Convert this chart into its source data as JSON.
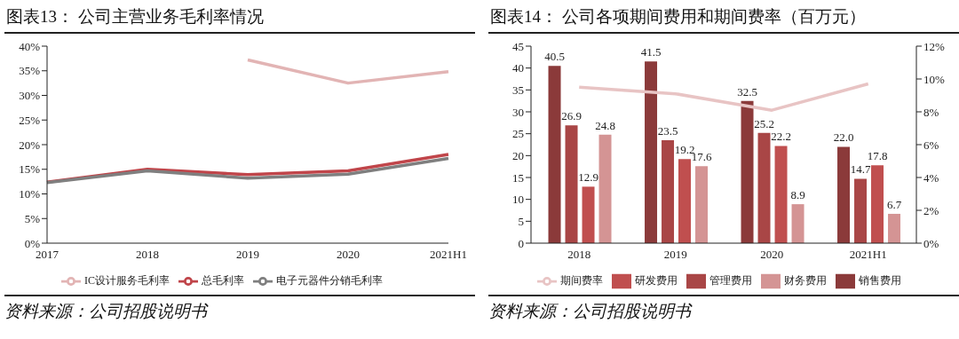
{
  "chart_data": [
    {
      "type": "line",
      "title": "图表13：  公司主营业务毛利率情况",
      "categories": [
        "2017",
        "2018",
        "2019",
        "2020",
        "2021H1"
      ],
      "series": [
        {
          "name": "总毛利率",
          "color": "#c0454a",
          "values": [
            12.4,
            15.0,
            13.9,
            14.7,
            18.0
          ]
        },
        {
          "name": "电子元器件分销毛利率",
          "color": "#7f7f7f",
          "values": [
            12.3,
            14.7,
            13.2,
            14.0,
            17.2
          ]
        },
        {
          "name": "IC设计服务毛利率",
          "color": "#e2b4b4",
          "values": [
            null,
            null,
            37.2,
            32.5,
            34.8
          ]
        }
      ],
      "ylim": [
        0,
        40
      ],
      "yticks": [
        {
          "value": 0,
          "label": "0%"
        },
        {
          "value": 5,
          "label": "5%"
        },
        {
          "value": 10,
          "label": "10%"
        },
        {
          "value": 15,
          "label": "15%"
        },
        {
          "value": 20,
          "label": "20%"
        },
        {
          "value": 25,
          "label": "25%"
        },
        {
          "value": 30,
          "label": "30%"
        },
        {
          "value": 35,
          "label": "35%"
        },
        {
          "value": 40,
          "label": "40%"
        }
      ],
      "grid": false,
      "legend": "bottom",
      "marker": "none",
      "line_style": "solid",
      "annotations": [
        "资料来源：公司招股说明书"
      ]
    },
    {
      "type": "bar",
      "title": "图表14：  公司各项期间费用和期间费率（百万元）",
      "categories": [
        "2018",
        "2019",
        "2020",
        "2021H1"
      ],
      "series": [
        {
          "name": "销售费用",
          "color": "#8b3a3a",
          "values": [
            40.5,
            41.5,
            32.5,
            22.0
          ],
          "value_labels": [
            "40.5",
            "41.5",
            "32.5",
            "22.0"
          ]
        },
        {
          "name": "管理费用",
          "color": "#a94646",
          "values": [
            26.9,
            23.5,
            25.2,
            14.7
          ],
          "value_labels": [
            "26.9",
            "23.5",
            "25.2",
            "14.7"
          ]
        },
        {
          "name": "研发费用",
          "color": "#c04f4f",
          "values": [
            12.9,
            19.2,
            22.2,
            17.8
          ],
          "value_labels": [
            "12.9",
            "19.2",
            "22.2",
            "17.8"
          ]
        },
        {
          "name": "财务费用",
          "color": "#d49494",
          "values": [
            24.8,
            17.6,
            8.9,
            6.7
          ],
          "value_labels": [
            "24.8",
            "17.6",
            "8.9",
            "6.7"
          ]
        },
        {
          "name": "期间费率",
          "type": "line",
          "axis": "y2",
          "color": "#e8c4c4",
          "values": [
            9.5,
            9.1,
            8.1,
            9.7
          ]
        }
      ],
      "ylim": [
        0,
        45
      ],
      "yticks": [
        0,
        5,
        10,
        15,
        20,
        25,
        30,
        35,
        40,
        45
      ],
      "y2lim": [
        0,
        12
      ],
      "y2ticks": [
        {
          "value": 0,
          "label": "0%"
        },
        {
          "value": 2,
          "label": "2%"
        },
        {
          "value": 4,
          "label": "4%"
        },
        {
          "value": 6,
          "label": "6%"
        },
        {
          "value": 8,
          "label": "8%"
        },
        {
          "value": 10,
          "label": "10%"
        },
        {
          "value": 12,
          "label": "12%"
        }
      ],
      "grid": false,
      "legend": "bottom",
      "marker": "none",
      "line_style": "solid",
      "annotations": [
        "资料来源：公司招股说明书"
      ]
    }
  ]
}
